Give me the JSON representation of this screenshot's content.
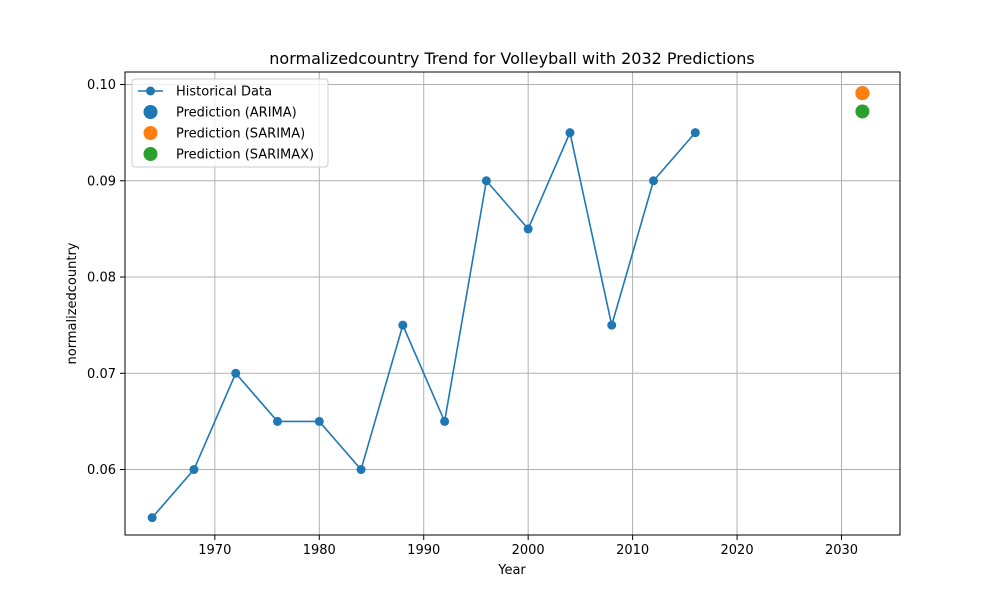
{
  "chart_data": {
    "type": "line",
    "title": "normalizedcountry Trend for Volleyball with 2032 Predictions",
    "xlabel": "Year",
    "ylabel": "normalizedcountry",
    "xlim": [
      1961.4,
      2035.6
    ],
    "ylim": [
      0.0532,
      0.1013
    ],
    "x_ticks": [
      1970,
      1980,
      1990,
      2000,
      2010,
      2020,
      2030
    ],
    "y_ticks": [
      0.06,
      0.07,
      0.08,
      0.09,
      0.1
    ],
    "y_tick_labels": [
      "0.06",
      "0.07",
      "0.08",
      "0.09",
      "0.10"
    ],
    "grid": true,
    "legend_position": "upper-left",
    "series": [
      {
        "name": "Historical Data",
        "kind": "line-marker",
        "color": "#1f77b4",
        "x": [
          1964,
          1968,
          1972,
          1976,
          1980,
          1984,
          1988,
          1992,
          1996,
          2000,
          2004,
          2008,
          2012,
          2016
        ],
        "y": [
          0.055,
          0.06,
          0.07,
          0.065,
          0.065,
          0.06,
          0.075,
          0.065,
          0.09,
          0.085,
          0.095,
          0.075,
          0.09,
          0.095
        ]
      },
      {
        "name": "Prediction (ARIMA)",
        "kind": "point",
        "color": "#1f77b4",
        "x": [
          2032
        ],
        "y": [
          0.0991
        ]
      },
      {
        "name": "Prediction (SARIMA)",
        "kind": "point",
        "color": "#ff7f0e",
        "x": [
          2032
        ],
        "y": [
          0.0991
        ]
      },
      {
        "name": "Prediction (SARIMAX)",
        "kind": "point",
        "color": "#2ca02c",
        "x": [
          2032
        ],
        "y": [
          0.0972
        ]
      }
    ]
  }
}
